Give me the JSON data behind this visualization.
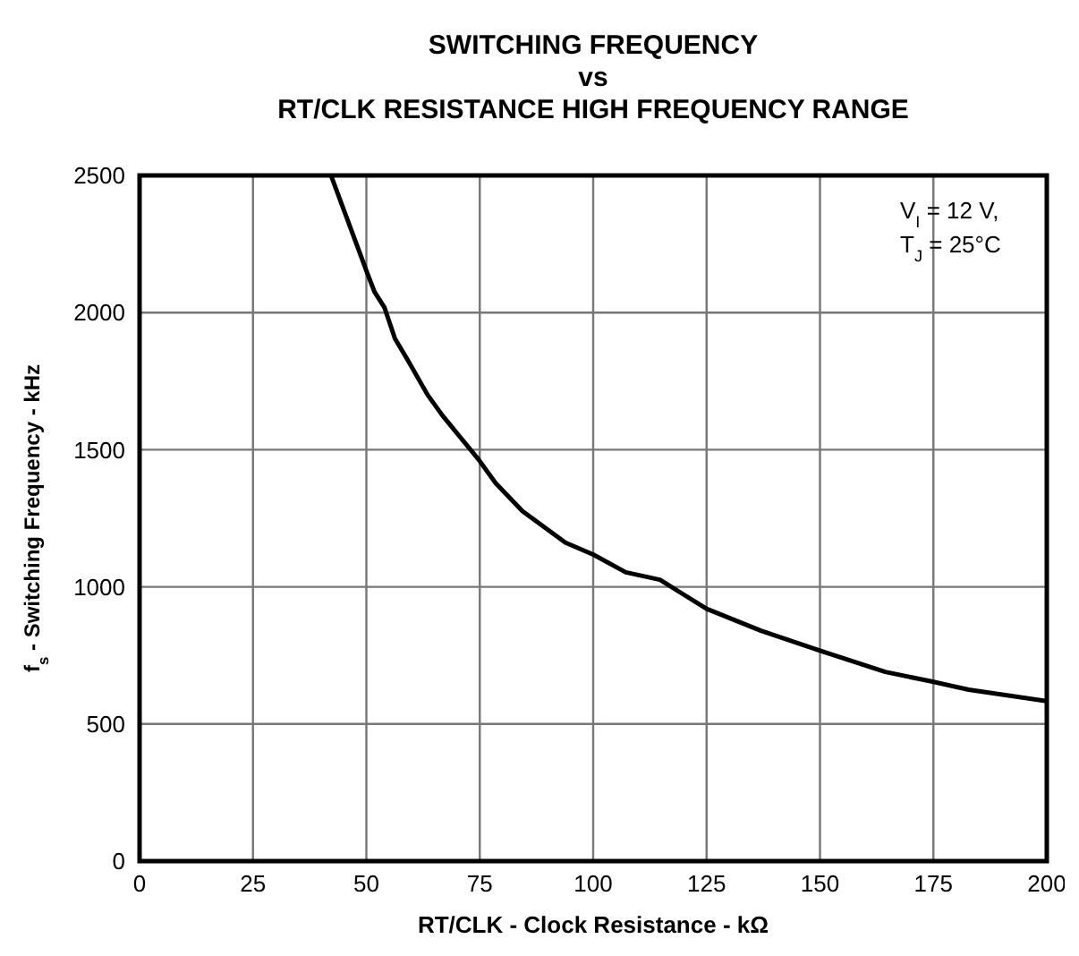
{
  "chart_data": {
    "type": "line",
    "title": "SWITCHING FREQUENCY\nvs\nRT/CLK RESISTANCE HIGH FREQUENCY RANGE",
    "xlabel": "RT/CLK - Clock Resistance - kΩ",
    "ylabel": "f$_{s}$ - Switching Frequency - kHz",
    "annotations": [
      "V$_{I}$ = 12 V,\nT$_{J}$ = 25°C"
    ],
    "series": [
      {
        "color": "#000000",
        "x": [
          42.2,
          50.2,
          51.8,
          54,
          56.3,
          59,
          63.5,
          66.8,
          74.7,
          78.5,
          84.4,
          93.9,
          100,
          107.2,
          114.7,
          125,
          137,
          150,
          164.4,
          174.6,
          182.8,
          200
        ],
        "values": [
          2500,
          2144,
          2075,
          2018,
          1905,
          1830,
          1700,
          1624,
          1465,
          1378,
          1276,
          1161,
          1118,
          1053,
          1026,
          920,
          840,
          767,
          690,
          655,
          625,
          583
        ]
      }
    ],
    "xlim": [
      0,
      200
    ],
    "xticks": [
      0,
      25,
      50,
      75,
      100,
      125,
      150,
      175,
      200
    ],
    "ylim": [
      0,
      2500
    ],
    "yticks": [
      0,
      500,
      1000,
      1500,
      2000,
      2500
    ],
    "grid": true,
    "marker": "none",
    "line_style": "solid"
  }
}
